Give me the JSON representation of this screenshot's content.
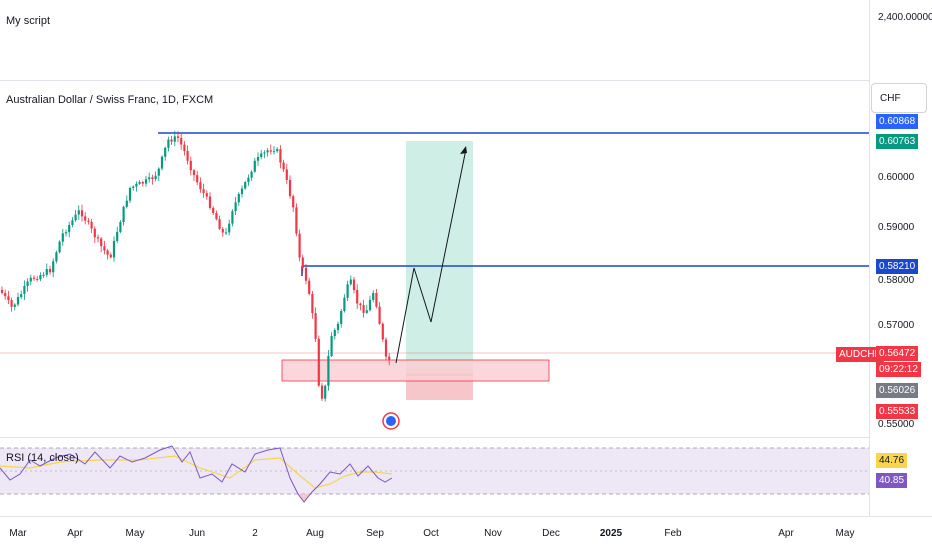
{
  "script_pane": {
    "title": "My script",
    "axis_value": "2,400.00000"
  },
  "main_pane": {
    "title": "Australian Dollar / Swiss Franc, 1D, FXCM",
    "currency": "CHF",
    "symbol": "AUDCHF",
    "price_ticks": [
      "0.60000",
      "0.59000",
      "0.58000",
      "0.57000",
      "0.55000"
    ],
    "tags": {
      "resistance_high": "0.60868",
      "target": "0.60763",
      "resistance_mid": "0.58210",
      "last_price": "0.56472",
      "countdown": "09:22:12",
      "entry": "0.56026",
      "stop": "0.55533"
    },
    "colors": {
      "level_line": "#1848cc",
      "target_tag": "#089981",
      "last_price": "#f23645",
      "entry_tag": "#787b86",
      "profit_zone": "#cfeee6",
      "loss_zone": "#f7c6ca",
      "demand_zone": "#f9d0d4",
      "up_candle": "#089981",
      "down_candle": "#f23645"
    }
  },
  "rsi_pane": {
    "title": "RSI (14, close)",
    "rsi_value": "40.85",
    "ma_value": "44.76",
    "colors": {
      "rsi": "#7e57c2",
      "ma": "#f7d64d",
      "band": "#ede7f6"
    }
  },
  "time_axis": {
    "labels": [
      "Mar",
      "Apr",
      "May",
      "Jun",
      "2",
      "Aug",
      "Sep",
      "Oct",
      "Nov",
      "Dec",
      "2025",
      "Feb",
      "Apr",
      "May"
    ]
  }
}
